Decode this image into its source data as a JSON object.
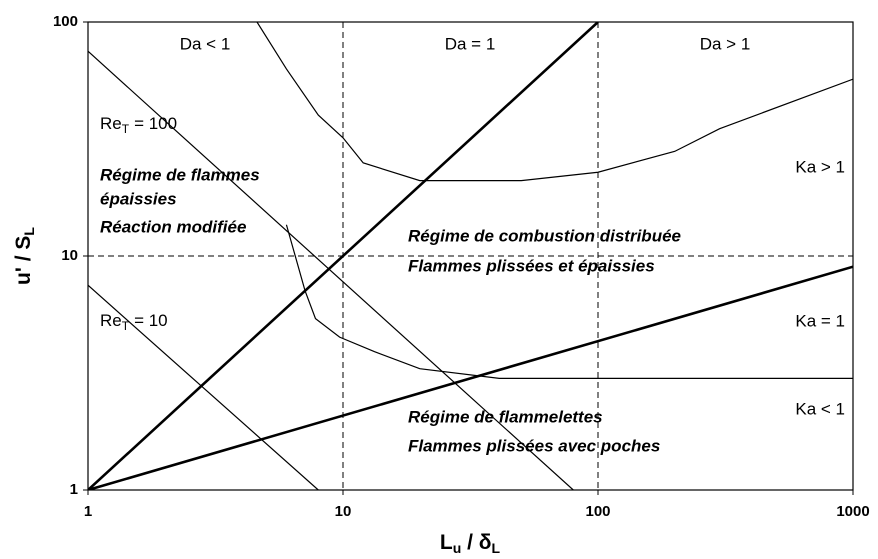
{
  "chart_data": {
    "type": "line",
    "xscale": "log",
    "yscale": "log",
    "xlim": [
      1,
      1000
    ],
    "ylim": [
      1,
      100
    ],
    "xticks": [
      1,
      10,
      100,
      1000
    ],
    "yticks": [
      1,
      10,
      100
    ],
    "grid": "dashed",
    "x_label": [
      "L",
      "u",
      " / δ",
      "L"
    ],
    "y_label": [
      "u' / S",
      "L"
    ],
    "series": [
      {
        "style": "thick",
        "color": "#000000",
        "x": [
          1,
          100
        ],
        "values": [
          1,
          100
        ]
      },
      {
        "style": "thick",
        "color": "#000000",
        "x": [
          1,
          1000
        ],
        "values": [
          1,
          9
        ]
      },
      {
        "style": "thin",
        "color": "#000000",
        "x": [
          1,
          80
        ],
        "values": [
          75,
          1
        ]
      },
      {
        "style": "thin",
        "color": "#000000",
        "x": [
          1,
          8
        ],
        "values": [
          7.5,
          1
        ]
      },
      {
        "style": "thin",
        "color": "#000000",
        "x": [
          4.6,
          6,
          8,
          10,
          12,
          20,
          50,
          100,
          200,
          300,
          1000
        ],
        "values": [
          100,
          63,
          40,
          32,
          25,
          21,
          21,
          22.8,
          28,
          35,
          57
        ]
      },
      {
        "style": "thin",
        "color": "#000000",
        "x": [
          6,
          7.1,
          7.8,
          9.7,
          13.3,
          20,
          41,
          1000
        ],
        "values": [
          13.6,
          7.1,
          5.4,
          4.5,
          3.9,
          3.3,
          3.0,
          3.0
        ]
      }
    ],
    "annotations": [
      "Da < 1",
      "Da = 1",
      "Da > 1",
      "Régime de flammes",
      "épaissies",
      "Réaction modifiée",
      "Ka > 1",
      "Régime de combustion distribuée",
      "Flammes plissées et épaissies",
      "Ka = 1",
      "Ka < 1",
      "Régime de flammelettes",
      "Flammes plissées avec poches"
    ],
    "re_labels": [
      [
        "Re",
        "T",
        "= 100"
      ],
      [
        "Re",
        "T",
        "= 10"
      ]
    ]
  }
}
